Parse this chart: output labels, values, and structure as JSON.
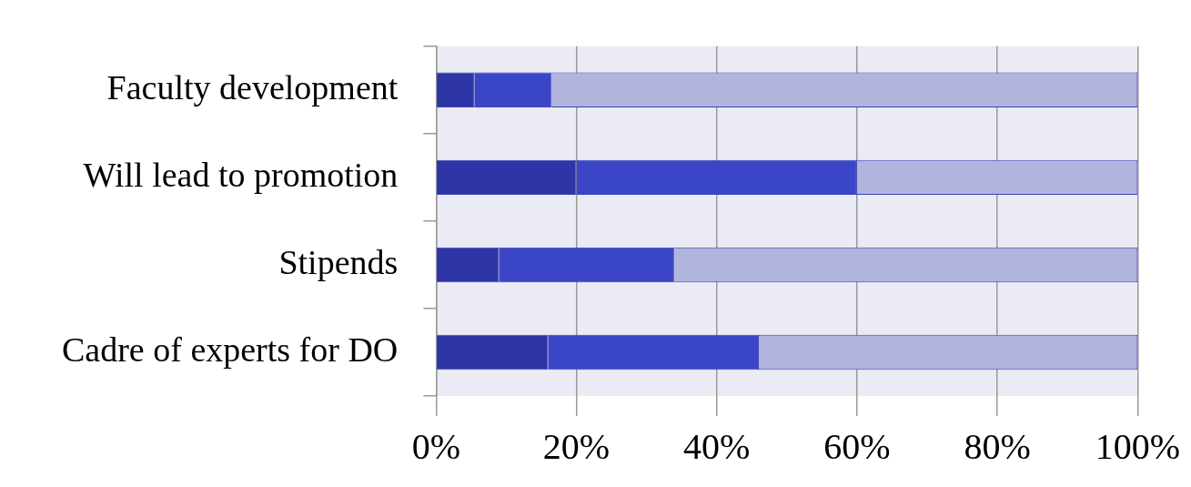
{
  "chart_data": {
    "type": "bar",
    "orientation": "horizontal",
    "stacked": true,
    "categories": [
      "Faculty development",
      "Will lead to promotion",
      "Stipends",
      "Cadre of experts for DO"
    ],
    "series": [
      {
        "color": "#2e35a6",
        "values": [
          5.5,
          20,
          9,
          16
        ]
      },
      {
        "color": "#3b46c6",
        "values": [
          11,
          40,
          25,
          30
        ]
      },
      {
        "color": "#b1b4dc",
        "values": [
          83.5,
          40,
          66,
          54
        ]
      }
    ],
    "xlim": [
      0,
      100
    ],
    "xticks": [
      {
        "value": 0,
        "label": "0%"
      },
      {
        "value": 20,
        "label": "20%"
      },
      {
        "value": 40,
        "label": "40%"
      },
      {
        "value": 60,
        "label": "60%"
      },
      {
        "value": 80,
        "label": "80%"
      },
      {
        "value": 100,
        "label": "100%"
      }
    ],
    "grid": "x",
    "legend": false
  }
}
